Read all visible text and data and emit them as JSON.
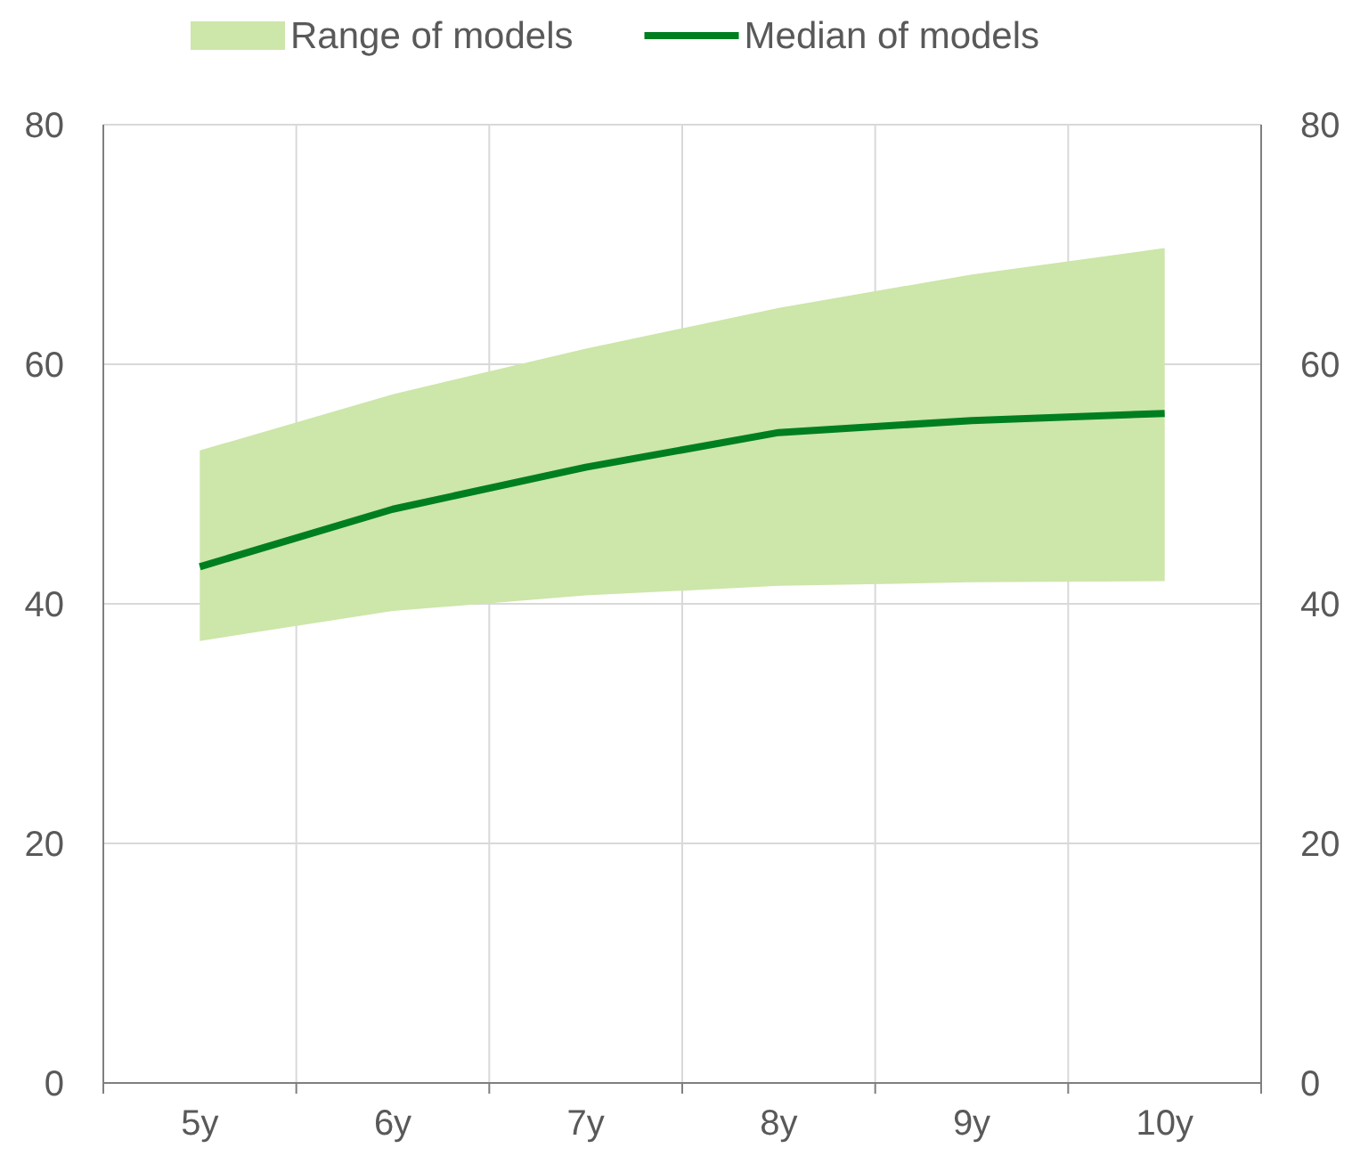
{
  "chart_data": {
    "type": "line",
    "categories": [
      "5y",
      "6y",
      "7y",
      "8y",
      "9y",
      "10y"
    ],
    "series": [
      {
        "name": "Range of models",
        "type": "area",
        "color": "#cde6a9",
        "values": [
          null,
          null,
          null,
          null,
          null,
          null
        ],
        "lower": [
          36.9,
          39.4,
          40.7,
          41.5,
          41.8,
          41.9
        ],
        "upper": [
          52.8,
          57.5,
          61.3,
          64.7,
          67.5,
          69.7
        ]
      },
      {
        "name": "Median of models",
        "type": "line",
        "color": "#007f20",
        "values": [
          43.1,
          47.9,
          51.4,
          54.3,
          55.3,
          55.9
        ]
      }
    ],
    "ylim": [
      0,
      80
    ],
    "yticks": [
      0,
      20,
      40,
      60,
      80
    ],
    "y2lim": [
      0,
      80
    ],
    "y2ticks": [
      0,
      20,
      40,
      60,
      80
    ],
    "grid": true,
    "legend": "top",
    "marker": "none",
    "line_style": "solid"
  }
}
